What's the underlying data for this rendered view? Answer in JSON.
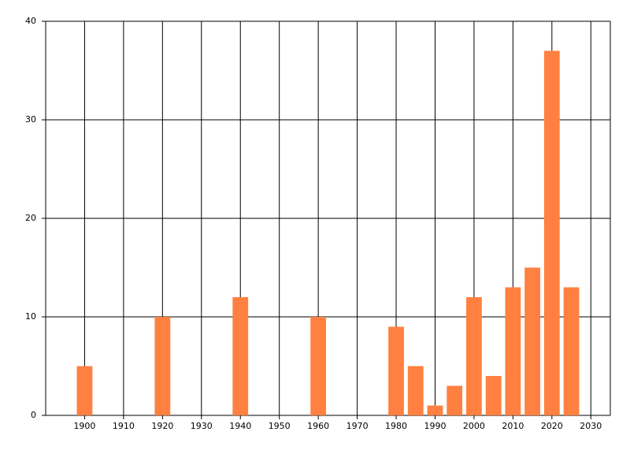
{
  "chart_data": {
    "type": "bar",
    "x": [
      1900,
      1920,
      1940,
      1960,
      1980,
      1985,
      1990,
      1995,
      2000,
      2005,
      2010,
      2015,
      2020,
      2025
    ],
    "values": [
      5,
      10,
      12,
      10,
      9,
      5,
      1,
      3,
      12,
      4,
      13,
      15,
      37,
      13
    ],
    "color": "#ff8040",
    "xlim": [
      1890,
      2035
    ],
    "xticks": [
      1900,
      1910,
      1920,
      1930,
      1940,
      1950,
      1960,
      1970,
      1980,
      1990,
      2000,
      2010,
      2020,
      2030
    ],
    "ylim": [
      0,
      40
    ],
    "yticks": [
      0,
      10,
      20,
      30,
      40
    ],
    "grid": true
  }
}
